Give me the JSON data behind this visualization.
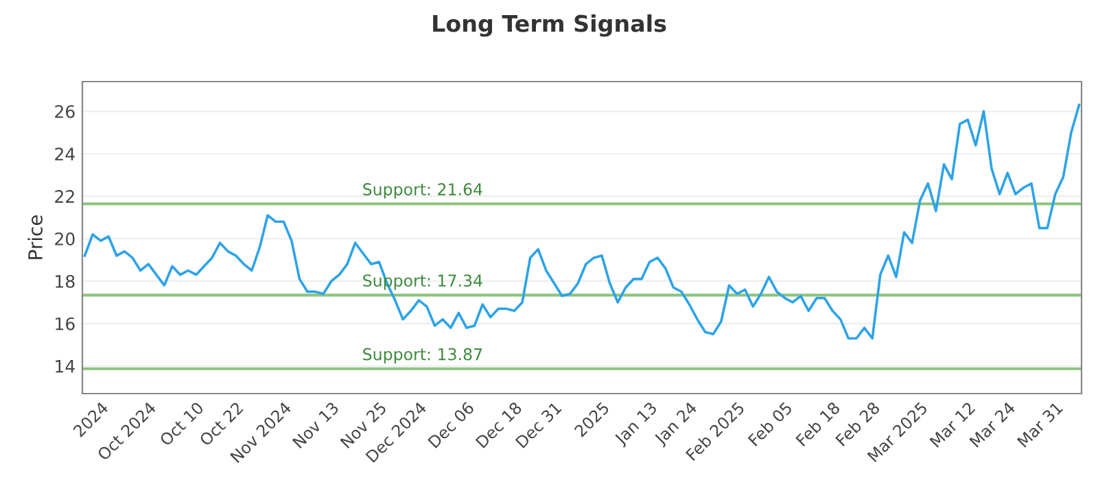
{
  "chart_data": {
    "type": "line",
    "title": "Long Term Signals",
    "ylabel": "Price",
    "categories": [
      null,
      null,
      "2024",
      null,
      null,
      null,
      null,
      null,
      "Oct 2024",
      null,
      null,
      null,
      null,
      null,
      "Oct 10",
      null,
      null,
      null,
      null,
      "Oct 22",
      null,
      null,
      null,
      null,
      null,
      "Nov 2024",
      null,
      null,
      null,
      null,
      null,
      "Nov 13",
      null,
      null,
      null,
      null,
      null,
      "Nov 25",
      null,
      null,
      null,
      null,
      "Dec 2024",
      null,
      null,
      null,
      null,
      null,
      "Dec 06",
      null,
      null,
      null,
      null,
      null,
      "Dec 18",
      null,
      null,
      null,
      null,
      "Dec 31",
      null,
      null,
      null,
      null,
      null,
      "2025",
      null,
      null,
      null,
      null,
      null,
      "Jan 13",
      null,
      null,
      null,
      null,
      "Jan 24",
      null,
      null,
      null,
      null,
      null,
      "Feb 2025",
      null,
      null,
      null,
      null,
      null,
      "Feb 05",
      null,
      null,
      null,
      null,
      null,
      "Feb 18",
      null,
      null,
      null,
      null,
      "Feb 28",
      null,
      null,
      null,
      null,
      null,
      "Mar 2025",
      null,
      null,
      null,
      null,
      null,
      "Mar 12",
      null,
      null,
      null,
      null,
      "Mar 24",
      null,
      null,
      null,
      null,
      null,
      "Mar 31",
      null,
      null,
      null
    ],
    "series": [
      {
        "color": "#2ea3e6",
        "values": [
          19.2,
          20.2,
          19.9,
          20.1,
          19.2,
          19.4,
          19.1,
          18.5,
          18.8,
          18.3,
          17.8,
          18.7,
          18.3,
          18.5,
          18.3,
          18.7,
          19.1,
          19.8,
          19.4,
          19.2,
          18.8,
          18.5,
          19.6,
          21.1,
          20.8,
          20.8,
          19.9,
          18.1,
          17.5,
          17.5,
          17.4,
          18.0,
          18.3,
          18.8,
          19.8,
          19.3,
          18.8,
          18.9,
          17.9,
          17.1,
          16.2,
          16.6,
          17.1,
          16.8,
          15.9,
          16.2,
          15.8,
          16.5,
          15.8,
          15.9,
          16.9,
          16.3,
          16.7,
          16.7,
          16.6,
          17.0,
          19.1,
          19.5,
          18.5,
          17.9,
          17.3,
          17.4,
          17.9,
          18.8,
          19.1,
          19.2,
          17.9,
          17.0,
          17.7,
          18.1,
          18.1,
          18.9,
          19.1,
          18.6,
          17.7,
          17.5,
          16.9,
          16.2,
          15.6,
          15.5,
          16.1,
          17.8,
          17.4,
          17.6,
          16.8,
          17.4,
          18.2,
          17.5,
          17.2,
          17.0,
          17.3,
          16.6,
          17.2,
          17.2,
          16.6,
          16.2,
          15.3,
          15.3,
          15.8,
          15.3,
          18.3,
          19.2,
          18.2,
          20.3,
          19.8,
          21.8,
          22.6,
          21.3,
          23.5,
          22.8,
          25.4,
          25.6,
          24.4,
          26.0,
          23.3,
          22.1,
          23.1,
          22.1,
          22.4,
          22.6,
          20.5,
          20.5,
          22.1,
          22.9,
          25.0,
          26.3
        ]
      }
    ],
    "ylim": [
      12.7,
      27.4
    ],
    "yticks": [
      14,
      16,
      18,
      20,
      22,
      24,
      26
    ],
    "grid": "y",
    "marker": "none",
    "line_style": "solid",
    "ref_lines": [
      {
        "axis": "y",
        "value": 21.64,
        "label": "Support: 21.64",
        "color": "#8cc47e"
      },
      {
        "axis": "y",
        "value": 17.34,
        "label": "Support: 17.34",
        "color": "#8cc47e"
      },
      {
        "axis": "y",
        "value": 13.87,
        "label": "Support: 13.87",
        "color": "#8cc47e"
      }
    ]
  }
}
